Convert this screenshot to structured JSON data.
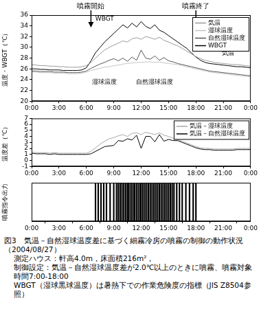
{
  "chart_data": [
    {
      "type": "line",
      "ylabel": "温度・WBGT（℃）",
      "x": [
        0,
        0.5,
        1,
        1.5,
        2,
        2.5,
        3,
        3.5,
        4,
        4.5,
        5,
        5.5,
        6,
        6.5,
        7,
        7.5,
        8,
        8.5,
        9,
        9.5,
        10,
        10.5,
        11,
        11.5,
        12,
        12.5,
        13,
        13.5,
        14,
        14.5,
        15,
        15.5,
        16,
        16.5,
        17,
        17.5,
        18,
        18.5,
        19,
        19.5,
        20,
        20.5,
        21,
        21.5,
        22,
        22.5,
        23,
        23.5,
        24
      ],
      "series": [
        {
          "name": "気温",
          "color": "#9a9a9a",
          "values": [
            26.8,
            26.7,
            26.6,
            26.6,
            26.5,
            26.5,
            26.4,
            26.4,
            26.3,
            26.3,
            26.3,
            26.4,
            26.6,
            27.2,
            28.0,
            28.8,
            29.5,
            30.0,
            30.4,
            30.8,
            31.2,
            31.0,
            31.6,
            31.8,
            31.5,
            32.0,
            31.8,
            31.5,
            31.9,
            31.3,
            31.0,
            30.6,
            30.3,
            29.8,
            29.3,
            28.8,
            28.3,
            27.9,
            27.6,
            27.4,
            27.2,
            27.1,
            27.0,
            26.9,
            26.8,
            26.8,
            26.7,
            26.6,
            26.5
          ]
        },
        {
          "name": "湿球温度",
          "color": "#c4c4c4",
          "values": [
            25.4,
            25.4,
            25.3,
            25.3,
            25.3,
            25.2,
            25.2,
            25.2,
            25.1,
            25.1,
            25.1,
            25.2,
            25.4,
            25.7,
            25.9,
            26.1,
            26.3,
            26.4,
            26.6,
            26.7,
            26.9,
            27.0,
            27.1,
            27.2,
            27.2,
            27.3,
            27.3,
            27.2,
            27.3,
            27.1,
            27.0,
            26.9,
            26.8,
            26.6,
            26.4,
            26.2,
            26.0,
            25.8,
            25.6,
            25.4,
            25.3,
            25.2,
            25.1,
            25.0,
            24.9,
            24.8,
            24.7,
            24.6,
            24.5
          ]
        },
        {
          "name": "自然湿球温度",
          "color": "#555555",
          "values": [
            25.6,
            25.6,
            25.5,
            25.5,
            25.5,
            25.4,
            25.4,
            25.4,
            25.3,
            25.3,
            25.3,
            25.4,
            25.6,
            26.1,
            26.5,
            26.9,
            27.2,
            27.6,
            27.9,
            27.5,
            28.0,
            27.4,
            28.2,
            27.6,
            29.5,
            28.0,
            27.8,
            28.4,
            27.6,
            28.1,
            27.5,
            27.3,
            27.0,
            26.8,
            26.6,
            26.4,
            26.2,
            26.0,
            25.8,
            25.6,
            25.5,
            25.4,
            25.3,
            25.2,
            25.1,
            25.0,
            24.9,
            24.8,
            24.7
          ]
        },
        {
          "name": "WBGT",
          "color": "#000000",
          "values": [
            26.0,
            26.0,
            25.9,
            25.9,
            25.8,
            25.8,
            25.8,
            25.7,
            25.7,
            25.7,
            25.7,
            25.8,
            26.2,
            27.5,
            29.0,
            30.0,
            31.0,
            31.8,
            32.6,
            33.4,
            34.2,
            33.6,
            34.5,
            33.8,
            34.8,
            33.9,
            33.5,
            34.2,
            33.2,
            32.8,
            32.2,
            31.6,
            31.0,
            30.4,
            29.8,
            29.0,
            28.2,
            27.6,
            27.2,
            27.0,
            26.9,
            26.8,
            26.7,
            26.6,
            26.5,
            26.4,
            26.4,
            26.3,
            26.2
          ]
        }
      ],
      "xlim": [
        0,
        24
      ],
      "xticks": [
        {
          "value": 0,
          "label": "0:00"
        },
        {
          "value": 3,
          "label": "3:00"
        },
        {
          "value": 6,
          "label": "6:00"
        },
        {
          "value": 9,
          "label": "9:00"
        },
        {
          "value": 12,
          "label": "12:00"
        },
        {
          "value": 15,
          "label": "15:00"
        },
        {
          "value": 18,
          "label": "18:00"
        },
        {
          "value": 21,
          "label": "21:00"
        },
        {
          "value": 24,
          "label": "0:00"
        }
      ],
      "ylim": [
        20,
        36
      ],
      "yticks": [
        20,
        22,
        24,
        26,
        28,
        30,
        32,
        34,
        36
      ],
      "grid": false,
      "legend": "upper right",
      "annotations": [
        {
          "text": "噴霧開始",
          "x": 6.5
        },
        {
          "text": "噴霧終了",
          "x": 18
        },
        {
          "text": "WBGT",
          "x": 8,
          "y": 35.3
        },
        {
          "text": "気温",
          "x": 21.5,
          "y": 28.9
        },
        {
          "text": "湿球温度",
          "x": 8,
          "y": 23.5
        },
        {
          "text": "自然湿球温度",
          "x": 13.5,
          "y": 23.5
        }
      ]
    },
    {
      "type": "line",
      "ylabel": "温度差（℃）",
      "x": [
        0,
        0.5,
        1,
        1.5,
        2,
        2.5,
        3,
        3.5,
        4,
        4.5,
        5,
        5.5,
        6,
        6.5,
        7,
        7.5,
        8,
        8.5,
        9,
        9.5,
        10,
        10.5,
        11,
        11.5,
        12,
        12.5,
        13,
        13.5,
        14,
        14.5,
        15,
        15.5,
        16,
        16.5,
        17,
        17.5,
        18,
        18.5,
        19,
        19.5,
        20,
        20.5,
        21,
        21.5,
        22,
        22.5,
        23,
        23.5,
        24
      ],
      "series": [
        {
          "name": "気温－湿球温度",
          "color": "#a8a8a8",
          "values": [
            1.4,
            1.3,
            1.3,
            1.3,
            1.2,
            1.3,
            1.2,
            1.2,
            1.2,
            1.2,
            1.2,
            1.2,
            1.2,
            1.5,
            2.1,
            2.7,
            3.2,
            3.6,
            3.8,
            4.1,
            4.3,
            4.0,
            4.5,
            4.6,
            4.3,
            4.7,
            4.5,
            4.3,
            4.6,
            4.2,
            4.0,
            3.7,
            3.5,
            3.2,
            2.9,
            2.6,
            2.3,
            2.1,
            2.0,
            2.0,
            1.9,
            1.9,
            1.9,
            1.9,
            1.9,
            2.0,
            2.0,
            2.0,
            2.0
          ]
        },
        {
          "name": "気温－自然湿球温度",
          "color": "#000000",
          "values": [
            1.2,
            1.1,
            1.1,
            1.1,
            1.0,
            1.1,
            1.0,
            1.0,
            1.0,
            1.0,
            1.0,
            1.0,
            1.0,
            1.1,
            1.5,
            1.9,
            2.3,
            2.4,
            2.5,
            3.3,
            3.2,
            3.6,
            3.4,
            4.2,
            2.0,
            4.0,
            4.0,
            3.1,
            4.3,
            3.2,
            3.5,
            3.3,
            3.3,
            3.0,
            2.7,
            2.4,
            2.1,
            1.9,
            1.8,
            1.8,
            1.7,
            1.7,
            1.7,
            1.7,
            1.7,
            1.8,
            1.8,
            1.8,
            1.8
          ]
        }
      ],
      "xlim": [
        0,
        24
      ],
      "xticks": [
        {
          "value": 0,
          "label": "0:00"
        },
        {
          "value": 3,
          "label": "3:00"
        },
        {
          "value": 6,
          "label": "6:00"
        },
        {
          "value": 9,
          "label": "9:00"
        },
        {
          "value": 12,
          "label": "12:00"
        },
        {
          "value": 15,
          "label": "15:00"
        },
        {
          "value": 18,
          "label": "18:00"
        },
        {
          "value": 21,
          "label": "21:00"
        },
        {
          "value": 24,
          "label": "0:00"
        }
      ],
      "ylim": [
        -1,
        7
      ],
      "yticks": [
        -1,
        0,
        1,
        2,
        3,
        4,
        5,
        6,
        7
      ],
      "grid": false,
      "legend": "upper right"
    },
    {
      "type": "bar",
      "ylabel": "噴霧指令出力",
      "x": [
        7,
        7.3,
        7.6,
        7.9,
        8.2,
        8.6,
        9,
        9.3,
        9.5,
        9.7,
        9.9,
        10.1,
        10.3,
        10.5,
        10.6,
        10.8,
        11,
        11.2,
        11.3,
        11.5,
        11.7,
        11.9,
        12,
        12.2,
        12.4,
        12.6,
        12.8,
        13,
        13.2,
        13.4,
        13.6,
        13.8,
        14,
        14.2,
        14.4,
        14.6,
        14.8,
        15,
        15.2,
        15.4,
        15.6,
        15.9,
        16.2,
        16.5,
        16.9,
        17.3,
        17.7,
        18
      ],
      "values": [
        1,
        1,
        1,
        1,
        1,
        1,
        1,
        1,
        1,
        1,
        1,
        1,
        1,
        1,
        1,
        1,
        1,
        1,
        1,
        1,
        1,
        1,
        1,
        1,
        1,
        1,
        1,
        1,
        1,
        1,
        1,
        1,
        1,
        1,
        1,
        1,
        1,
        1,
        1,
        1,
        1,
        1,
        1,
        1,
        1,
        1,
        1,
        1
      ],
      "color": "#000000",
      "xlim": [
        0,
        24
      ],
      "xticks": [
        {
          "value": 0,
          "label": "0:00"
        },
        {
          "value": 3,
          "label": "3:00"
        },
        {
          "value": 6,
          "label": "6:00"
        },
        {
          "value": 9,
          "label": "9:00"
        },
        {
          "value": 12,
          "label": "12:00"
        },
        {
          "value": 15,
          "label": "15:00"
        },
        {
          "value": 18,
          "label": "18:00"
        },
        {
          "value": 21,
          "label": "21:00"
        },
        {
          "value": 24,
          "label": "0:00"
        }
      ],
      "ylim": [
        0,
        1
      ],
      "tick_labels": "x",
      "grid": false
    }
  ],
  "caption": {
    "title": "図3　気温－自然湿球温度差に基づく細霧冷房の噴霧の制御の動作状況（2004/08/27）",
    "lines": [
      "測定ハウス：軒高4.0m，床面積216m²，",
      "制御設定：気温－自然湿球温度差が2.0℃以上のときに噴霧、噴霧対象時間7:00-18:00",
      "WBGT（湿球黒球温度）は暑熱下での作業危険度の指標（JIS Z8504参照）"
    ]
  }
}
